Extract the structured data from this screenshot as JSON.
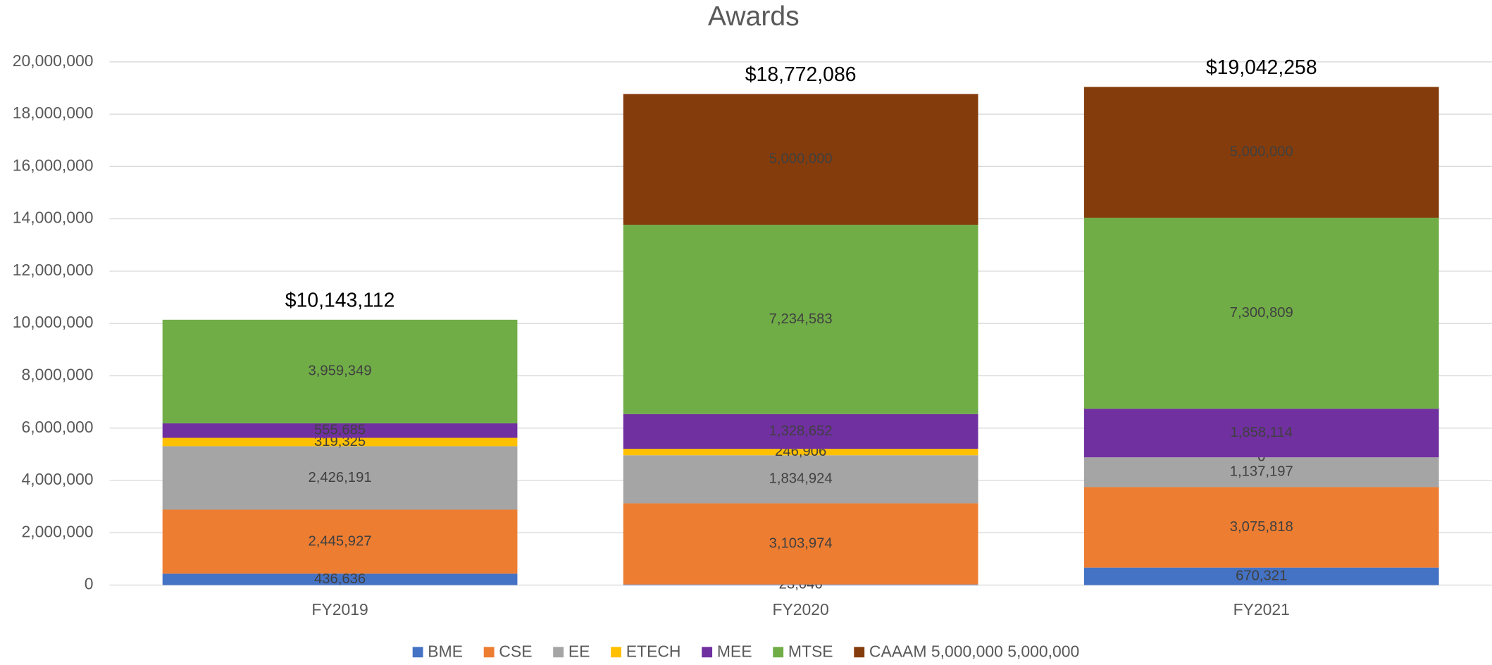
{
  "chart_data": {
    "type": "stacked_bar",
    "title": "Awards",
    "categories": [
      "FY2019",
      "FY2020",
      "FY2021"
    ],
    "series": [
      {
        "name": "BME",
        "color": "#4472c4",
        "values": [
          436636,
          23046,
          670321
        ],
        "value_labels": [
          "436,636",
          "23,046",
          "670,321"
        ]
      },
      {
        "name": "CSE",
        "color": "#ed7d31",
        "values": [
          2445927,
          3103974,
          3075818
        ],
        "value_labels": [
          "2,445,927",
          "3,103,974",
          "3,075,818"
        ]
      },
      {
        "name": "EE",
        "color": "#a5a5a5",
        "values": [
          2426191,
          1834924,
          1137197
        ],
        "value_labels": [
          "2,426,191",
          "1,834,924",
          "1,137,197"
        ]
      },
      {
        "name": "ETECH",
        "color": "#ffc000",
        "values": [
          319325,
          246906,
          0
        ],
        "value_labels": [
          "319,325",
          "246,906",
          "0"
        ]
      },
      {
        "name": "MEE",
        "color": "#7030a0",
        "values": [
          555685,
          1328652,
          1858114
        ],
        "value_labels": [
          "555,685",
          "1,328,652",
          "1,858,114"
        ]
      },
      {
        "name": "MTSE",
        "color": "#70ad47",
        "values": [
          3959349,
          7234583,
          7300809
        ],
        "value_labels": [
          "3,959,349",
          "7,234,583",
          "7,300,809"
        ]
      },
      {
        "name": "CAAAM 5,000,000 5,000,000",
        "color": "#843c0c",
        "values": [
          null,
          5000000,
          5000000
        ],
        "value_labels": [
          null,
          "5,000,000",
          "5,000,000"
        ]
      }
    ],
    "totals": [
      10143112,
      18772086,
      19042258
    ],
    "total_labels": [
      "$10,143,112",
      "$18,772,086",
      "$19,042,258"
    ],
    "ylim": [
      0,
      20000000
    ],
    "yticks": [
      0,
      {
        "value": 2000000,
        "label": "2,000,000"
      },
      {
        "value": 4000000,
        "label": "4,000,000"
      },
      {
        "value": 6000000,
        "label": "6,000,000"
      },
      {
        "value": 8000000,
        "label": "8,000,000"
      },
      {
        "value": 10000000,
        "label": "10,000,000"
      },
      {
        "value": 12000000,
        "label": "12,000,000"
      },
      {
        "value": 14000000,
        "label": "14,000,000"
      },
      {
        "value": 16000000,
        "label": "16,000,000"
      },
      {
        "value": 18000000,
        "label": "18,000,000"
      },
      {
        "value": 20000000,
        "label": "20,000,000"
      }
    ],
    "grid": true,
    "legend": "bottom"
  }
}
